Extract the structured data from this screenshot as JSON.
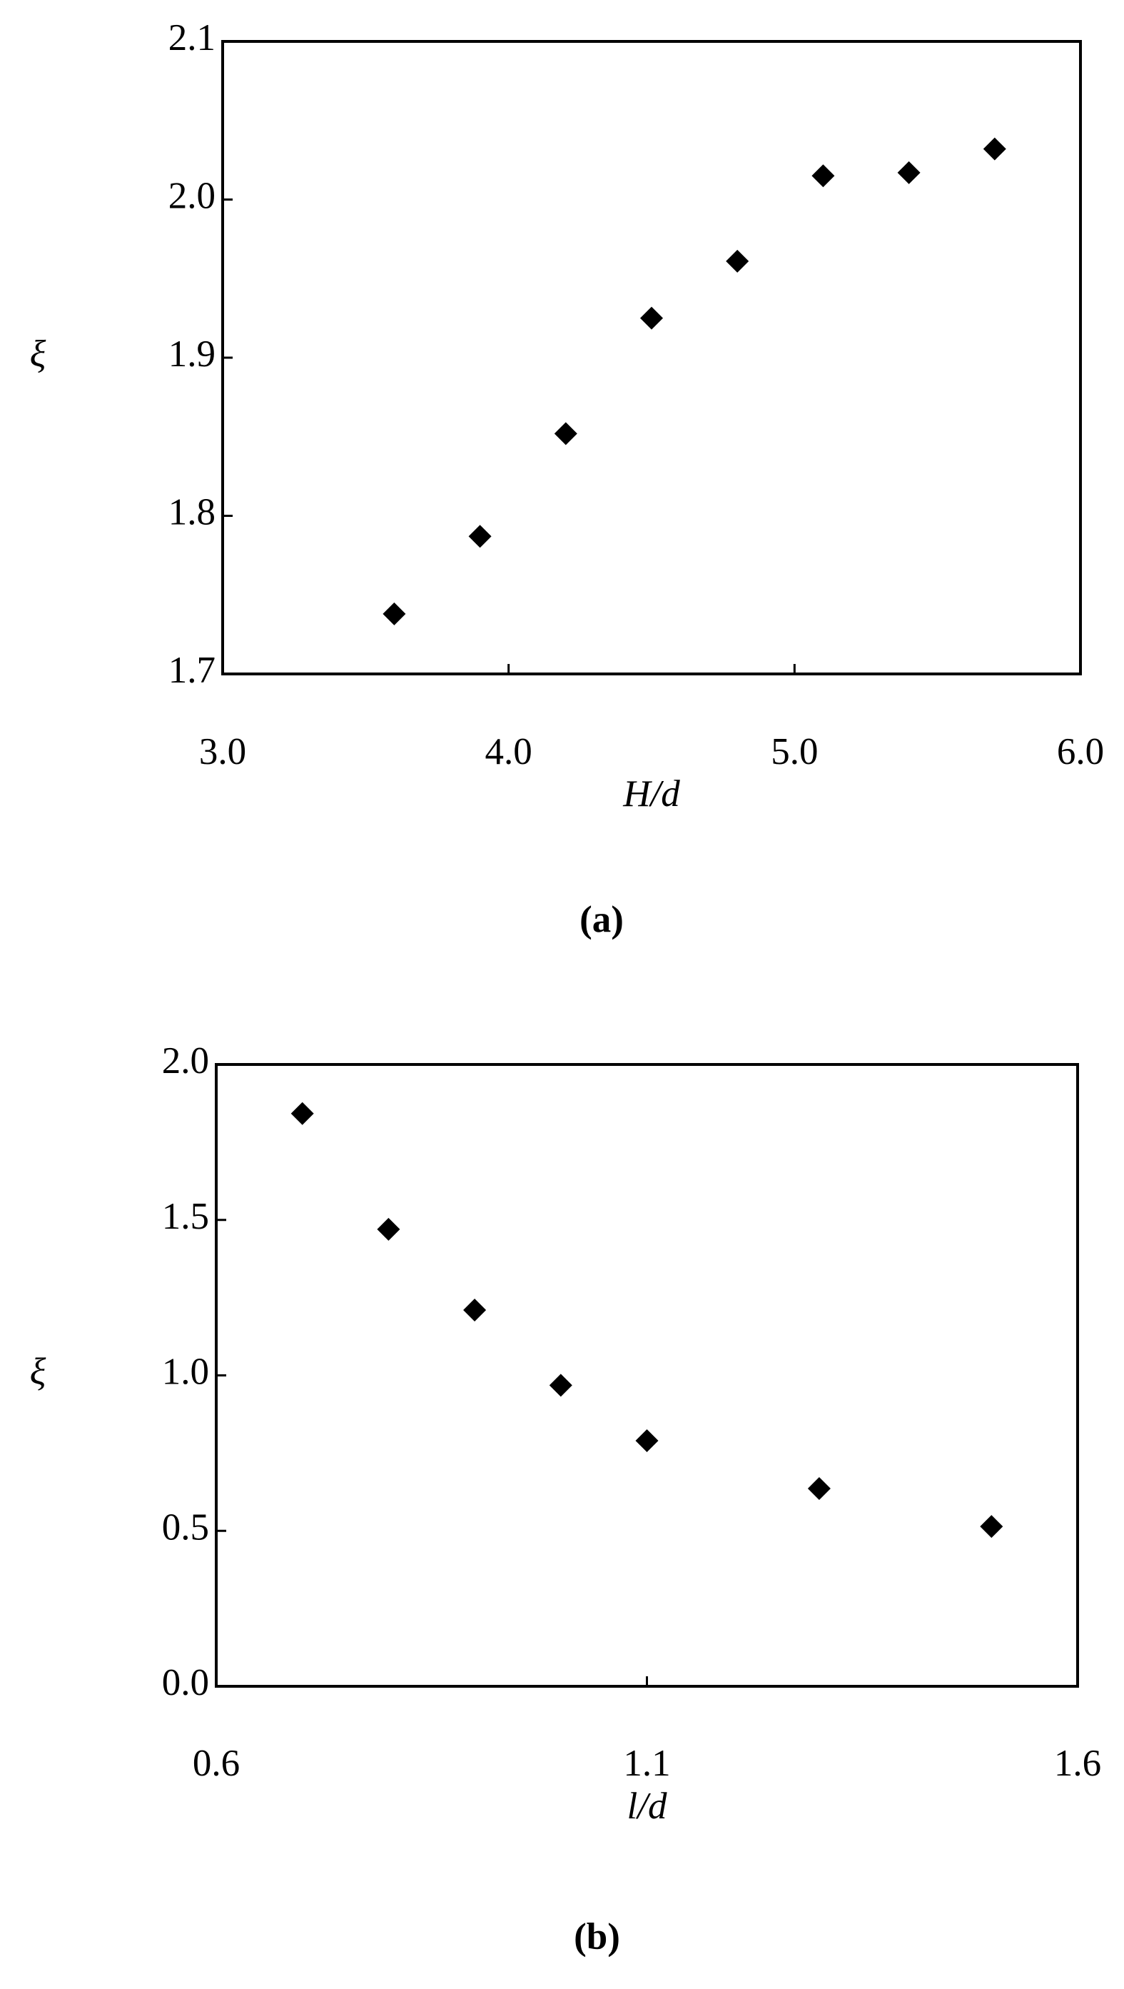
{
  "chart_data": [
    {
      "type": "scatter",
      "caption": "(a)",
      "xlabel": "H/d",
      "ylabel": "ξ",
      "color": "#000000",
      "x": [
        3.6,
        3.9,
        4.2,
        4.5,
        4.8,
        5.1,
        5.4,
        5.7
      ],
      "values": [
        1.738,
        1.787,
        1.852,
        1.925,
        1.961,
        2.015,
        2.017,
        2.032
      ],
      "xlim": [
        3.0,
        6.0
      ],
      "ylim": [
        1.7,
        2.1
      ],
      "xticks": [
        {
          "value": 3,
          "label": "3.0"
        },
        {
          "value": 4,
          "label": "4.0"
        },
        {
          "value": 5,
          "label": "5.0"
        },
        {
          "value": 6,
          "label": "6.0"
        }
      ],
      "yticks": [
        1.7,
        1.8,
        1.9,
        {
          "value": 2,
          "label": "2.0"
        },
        2.1
      ]
    },
    {
      "type": "scatter",
      "caption": "(b)",
      "xlabel": "l/d",
      "ylabel": "ξ",
      "color": "#000000",
      "x": [
        0.7,
        0.8,
        0.9,
        1.0,
        1.1,
        1.3,
        1.5
      ],
      "values": [
        1.842,
        1.47,
        1.21,
        0.968,
        0.79,
        0.636,
        0.514
      ],
      "xlim": [
        0.6,
        1.6
      ],
      "ylim": [
        0.0,
        2.0
      ],
      "xticks": [
        0.6,
        1.1,
        1.6
      ],
      "yticks": [
        {
          "value": 0,
          "label": "0.0"
        },
        0.5,
        {
          "value": 1,
          "label": "1.0"
        },
        1.5,
        {
          "value": 2,
          "label": "2.0"
        }
      ]
    }
  ]
}
